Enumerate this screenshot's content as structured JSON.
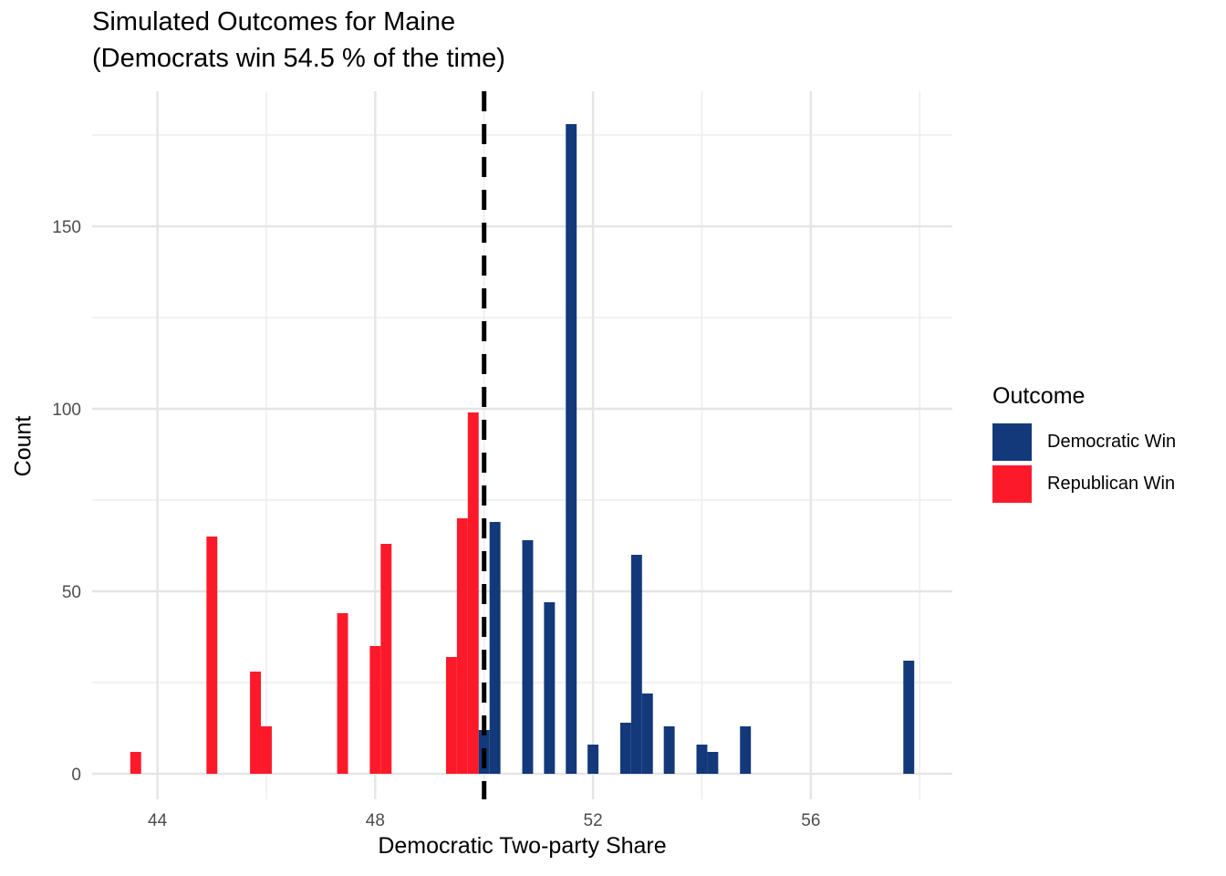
{
  "chart_data": {
    "type": "bar",
    "title": "Simulated Outcomes for Maine",
    "subtitle": "(Democrats win 54.5 % of the time)",
    "xlabel": "Democratic Two-party Share",
    "ylabel": "Count",
    "xlim": [
      42.8,
      58.6
    ],
    "ylim": [
      -7,
      187
    ],
    "x_ticks": [
      44,
      48,
      52,
      56
    ],
    "y_ticks": [
      0,
      50,
      100,
      150
    ],
    "x_tick_labels": [
      "44",
      "48",
      "52",
      "56"
    ],
    "y_tick_labels": [
      "0",
      "50",
      "100",
      "150"
    ],
    "bin_width": 0.2,
    "threshold": 50,
    "grid": true,
    "legend": {
      "title": "Outcome",
      "position": "right",
      "entries": [
        {
          "name": "Democratic Win",
          "color": "#13397A"
        },
        {
          "name": "Republican Win",
          "color": "#FC1A2A"
        }
      ]
    },
    "series": [
      {
        "name": "Republican Win",
        "color": "#FC1A2A",
        "x": [
          43.6,
          45.0,
          45.8,
          46.0,
          47.4,
          48.0,
          48.2,
          49.4,
          49.6,
          49.8
        ],
        "values": [
          6,
          65,
          28,
          13,
          44,
          35,
          63,
          32,
          70,
          99
        ]
      },
      {
        "name": "Democratic Win",
        "color": "#13397A",
        "x": [
          50.0,
          50.2,
          50.8,
          51.2,
          51.6,
          52.0,
          52.6,
          52.8,
          53.0,
          53.4,
          54.0,
          54.2,
          54.8,
          57.8
        ],
        "values": [
          12,
          69,
          64,
          47,
          178,
          8,
          14,
          60,
          22,
          13,
          8,
          6,
          13,
          31
        ]
      }
    ]
  }
}
